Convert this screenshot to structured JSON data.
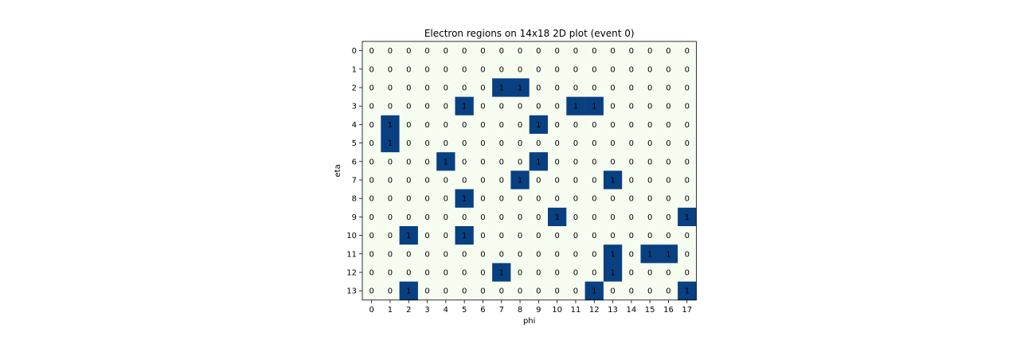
{
  "chart_data": {
    "type": "heatmap",
    "title": "Electron regions on 14x18 2D plot (event 0)",
    "xlabel": "phi",
    "ylabel": "eta",
    "x_ticks": [
      "0",
      "1",
      "2",
      "3",
      "4",
      "5",
      "6",
      "7",
      "8",
      "9",
      "10",
      "11",
      "12",
      "13",
      "14",
      "15",
      "16",
      "17"
    ],
    "y_ticks": [
      "0",
      "1",
      "2",
      "3",
      "4",
      "5",
      "6",
      "7",
      "8",
      "9",
      "10",
      "11",
      "12",
      "13"
    ],
    "values": [
      [
        0,
        0,
        0,
        0,
        0,
        0,
        0,
        0,
        0,
        0,
        0,
        0,
        0,
        0,
        0,
        0,
        0,
        0
      ],
      [
        0,
        0,
        0,
        0,
        0,
        0,
        0,
        0,
        0,
        0,
        0,
        0,
        0,
        0,
        0,
        0,
        0,
        0
      ],
      [
        0,
        0,
        0,
        0,
        0,
        0,
        0,
        1,
        1,
        0,
        0,
        0,
        0,
        0,
        0,
        0,
        0,
        0
      ],
      [
        0,
        0,
        0,
        0,
        0,
        1,
        0,
        0,
        0,
        0,
        0,
        1,
        1,
        0,
        0,
        0,
        0,
        0
      ],
      [
        0,
        1,
        0,
        0,
        0,
        0,
        0,
        0,
        0,
        1,
        0,
        0,
        0,
        0,
        0,
        0,
        0,
        0
      ],
      [
        0,
        1,
        0,
        0,
        0,
        0,
        0,
        0,
        0,
        0,
        0,
        0,
        0,
        0,
        0,
        0,
        0,
        0
      ],
      [
        0,
        0,
        0,
        0,
        1,
        0,
        0,
        0,
        0,
        1,
        0,
        0,
        0,
        0,
        0,
        0,
        0,
        0
      ],
      [
        0,
        0,
        0,
        0,
        0,
        0,
        0,
        0,
        1,
        0,
        0,
        0,
        0,
        1,
        0,
        0,
        0,
        0
      ],
      [
        0,
        0,
        0,
        0,
        0,
        1,
        0,
        0,
        0,
        0,
        0,
        0,
        0,
        0,
        0,
        0,
        0,
        0
      ],
      [
        0,
        0,
        0,
        0,
        0,
        0,
        0,
        0,
        0,
        0,
        1,
        0,
        0,
        0,
        0,
        0,
        0,
        1
      ],
      [
        0,
        0,
        1,
        0,
        0,
        1,
        0,
        0,
        0,
        0,
        0,
        0,
        0,
        0,
        0,
        0,
        0,
        0
      ],
      [
        0,
        0,
        0,
        0,
        0,
        0,
        0,
        0,
        0,
        0,
        0,
        0,
        0,
        1,
        0,
        1,
        1,
        0
      ],
      [
        0,
        0,
        0,
        0,
        0,
        0,
        0,
        1,
        0,
        0,
        0,
        0,
        0,
        1,
        0,
        0,
        0,
        0
      ],
      [
        0,
        0,
        1,
        0,
        0,
        0,
        0,
        0,
        0,
        0,
        0,
        0,
        1,
        0,
        0,
        0,
        0,
        1
      ]
    ],
    "colors": {
      "zero": "#f7fcf0",
      "one": "#084081"
    },
    "grid": false,
    "legend": "none"
  }
}
